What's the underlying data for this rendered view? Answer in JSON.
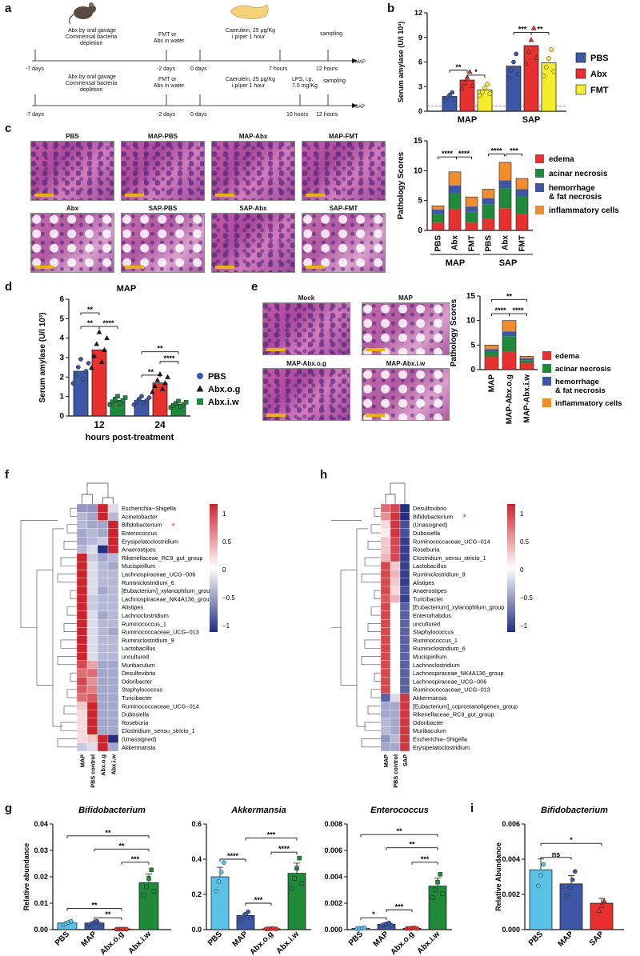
{
  "panel_labels": {
    "a": "a",
    "b": "b",
    "c": "c",
    "d": "d",
    "e": "e",
    "f": "f",
    "g": "g",
    "h": "h",
    "i": "i"
  },
  "panel_a": {
    "row1": {
      "abx_text_1": "Abx by oral gavage",
      "abx_text_2": "Commensal bacteria",
      "abx_text_3": "depletion",
      "fmt_text_1": "FMT or",
      "fmt_text_2": "Abx in water",
      "cae_text_1": "Caerulein, 25 μg/Kg",
      "cae_text_2": "i.p/per 1 hour",
      "sampling": "sampling",
      "t_m7": "-7 days",
      "t_m2": "-2 days",
      "t_0": "0 days",
      "t_7h": "7 hours",
      "t_12h": "12 hours",
      "end_label": "MAP"
    },
    "row2": {
      "abx_text_1": "Abx by oral gavage",
      "abx_text_2": "Commensal bacteria",
      "abx_text_3": "depletion",
      "fmt_text_1": "FMT or",
      "fmt_text_2": "Abx in water",
      "cae_text_1": "Caerulein, 25 μg/Kg",
      "cae_text_2": "i.p/per 1 hour",
      "lps_text_1": "LPS, i.p.",
      "lps_text_2": "7.5 mg/Kg",
      "sampling": "sampling",
      "t_m7": "-7 days",
      "t_m2": "-2 days",
      "t_0": "0 days",
      "t_10h": "10 hours",
      "t_12h": "12 hours",
      "end_label": "SAP"
    }
  },
  "colors": {
    "pbs": "#3d57a7",
    "abx": "#e8312f",
    "fmt": "#f6ee2c",
    "edema": "#e8312f",
    "acinar": "#1f8a3a",
    "hemorrhage": "#3d57a7",
    "inflam": "#f08c2a",
    "light_blue": "#5bc2e7",
    "green": "#1f8a3a"
  },
  "chart_b": {
    "type": "bar",
    "ylabel": "Serum amylase (U/l 10³)",
    "yticks": [
      "0",
      "3",
      "6",
      "9",
      "12"
    ],
    "categories": [
      "MAP",
      "SAP"
    ],
    "series": [
      {
        "name": "PBS",
        "values": [
          1.8,
          5.5
        ]
      },
      {
        "name": "Abx",
        "values": [
          3.8,
          8.0
        ]
      },
      {
        "name": "FMT",
        "values": [
          2.6,
          5.9
        ]
      }
    ],
    "ylim": [
      0,
      12
    ],
    "sig": [
      "**",
      "*",
      "***",
      "**"
    ]
  },
  "panel_c_images": [
    "PBS",
    "MAP-PBS",
    "MAP-Abx",
    "MAP-FMT",
    "Abx",
    "SAP-PBS",
    "SAP-Abx",
    "SAP-FMT"
  ],
  "chart_c": {
    "type": "bar",
    "ylabel": "Pathology Scores",
    "yticks": [
      "0",
      "5",
      "10",
      "15"
    ],
    "ylim": [
      0,
      15
    ],
    "categories": [
      "PBS",
      "Abx",
      "FMT",
      "PBS",
      "Abx",
      "FMT"
    ],
    "groups": [
      "MAP",
      "SAP"
    ],
    "series": [
      {
        "name": "edema",
        "values": [
          1.3,
          3.5,
          1.3,
          2.0,
          3.7,
          2.7
        ]
      },
      {
        "name": "acinar necrosis",
        "values": [
          1.4,
          2.8,
          1.8,
          2.4,
          3.3,
          3.0
        ]
      },
      {
        "name": "hemorrhage\n& fat necrosis",
        "values": [
          0.8,
          1.2,
          0.9,
          1.0,
          1.4,
          1.2
        ]
      },
      {
        "name": "inflammatory cells",
        "values": [
          0.6,
          2.3,
          1.6,
          1.5,
          3.0,
          1.8
        ]
      }
    ],
    "legend": [
      "edema",
      "acinar necrosis",
      "hemorrhage",
      "& fat necrosis",
      "inflammatory cells"
    ],
    "sig": [
      "****",
      "****",
      "****",
      "***"
    ]
  },
  "chart_d": {
    "type": "bar",
    "title": "MAP",
    "ylabel": "Serum amylase (U/l 10³)",
    "xlabel": "hours post-treatment",
    "yticks": [
      "0",
      "1",
      "2",
      "3",
      "4",
      "5",
      "6"
    ],
    "ylim": [
      0,
      6
    ],
    "categories": [
      "12",
      "24"
    ],
    "series": [
      {
        "name": "PBS",
        "values": [
          2.3,
          0.8
        ]
      },
      {
        "name": "Abx.o.g",
        "values": [
          3.4,
          1.7
        ]
      },
      {
        "name": "Abx.i.w",
        "values": [
          0.8,
          0.6
        ]
      }
    ],
    "sig": [
      "**",
      "**",
      "****",
      "**",
      "**",
      "****"
    ]
  },
  "panel_e_images": [
    "Mock",
    "MAP",
    "MAP-Abx.o.g",
    "MAP-Abx.i.w"
  ],
  "chart_e": {
    "type": "bar",
    "ylabel": "Pathology Scores",
    "yticks": [
      "0",
      "5",
      "10",
      "15"
    ],
    "ylim": [
      0,
      15
    ],
    "categories": [
      "MAP",
      "MAP-Abx.o.g",
      "MAP-Abx.i.w"
    ],
    "series": [
      {
        "name": "edema",
        "values": [
          2.6,
          3.6,
          1.3
        ]
      },
      {
        "name": "acinar necrosis",
        "values": [
          1.0,
          3.2,
          0.6
        ]
      },
      {
        "name": "hemorrhage & fat necrosis",
        "values": [
          0.6,
          1.0,
          0.4
        ]
      },
      {
        "name": "inflammatory cells",
        "values": [
          0.8,
          2.2,
          0.4
        ]
      }
    ],
    "legend": [
      "edema",
      "acinar necrosis",
      "hemorrhage",
      "& fat necrosis",
      "inflammatory cells"
    ],
    "sig": [
      "**",
      "****",
      "****"
    ]
  },
  "heatmap_f": {
    "columns": [
      "MAP",
      "PBS control",
      "Abx.o.g",
      "Abx.i.w"
    ],
    "scale": [
      "1",
      "0.5",
      "0",
      "−0.5",
      "−1"
    ],
    "rows": [
      "Escherichia−Shigella",
      "Acinetobacter",
      "Bifidobacterium",
      "Enterococcus",
      "Erysipelatoclostridium",
      "Anaerostipes",
      "Rikenellaceae_RC9_gut_group",
      "Mucispirillum",
      "Lachnospiraceae_UCG−006",
      "Ruminiclostridium_6",
      "[Eubacterium]_xylanophilum_group",
      "Lachnospiraceae_NK4A136_group",
      "Alistipes",
      "Lachnoclostridium",
      "Ruminococcus_1",
      "Ruminococcaceae_UCG−013",
      "Ruminiclostridium_9",
      "Lactobacillus",
      "uncultured",
      "Muribaculum",
      "Desulfovibrio",
      "Odoribacter",
      "Staphylococcus",
      "Turicibacter",
      "Ruminococcaceae_UCG−014",
      "Dubosiella",
      "Roseburia",
      "Clostridium_sensu_stricto_1",
      "(Unassigned)",
      "Akkermansia"
    ],
    "values": [
      [
        -0.6,
        -0.6,
        1.4,
        -0.2
      ],
      [
        -0.4,
        -0.5,
        1.4,
        -0.4
      ],
      [
        -0.4,
        -0.5,
        -0.5,
        1.4
      ],
      [
        -0.5,
        -0.4,
        -0.5,
        1.4
      ],
      [
        -0.5,
        -0.4,
        -0.3,
        1.4
      ],
      [
        -0.4,
        -0.2,
        -1.2,
        1.4
      ],
      [
        1.4,
        -0.3,
        -0.5,
        -0.4
      ],
      [
        1.4,
        -0.2,
        -0.4,
        -0.5
      ],
      [
        1.4,
        -0.2,
        -0.4,
        -0.4
      ],
      [
        1.4,
        -0.2,
        -0.4,
        -0.4
      ],
      [
        1.4,
        -0.2,
        -0.5,
        -0.4
      ],
      [
        1.4,
        -0.3,
        -0.4,
        -0.4
      ],
      [
        1.4,
        -0.3,
        -0.4,
        -0.4
      ],
      [
        1.4,
        -0.2,
        -0.5,
        -0.4
      ],
      [
        1.4,
        -0.2,
        -0.4,
        -0.4
      ],
      [
        1.4,
        -0.2,
        -0.4,
        -0.5
      ],
      [
        1.4,
        -0.2,
        -0.4,
        -0.4
      ],
      [
        1.4,
        -0.2,
        -0.4,
        -0.4
      ],
      [
        1.4,
        -0.2,
        -0.4,
        -0.4
      ],
      [
        1.0,
        0.5,
        -0.5,
        -0.5
      ],
      [
        0.8,
        0.8,
        -0.5,
        -0.5
      ],
      [
        1.0,
        0.6,
        -0.5,
        -0.5
      ],
      [
        0.9,
        0.7,
        -0.5,
        -0.5
      ],
      [
        0.8,
        0.9,
        -0.5,
        -0.5
      ],
      [
        0.3,
        1.3,
        -0.5,
        -0.5
      ],
      [
        0.2,
        1.3,
        -0.5,
        -0.5
      ],
      [
        0.2,
        1.3,
        -0.5,
        -0.5
      ],
      [
        0.2,
        1.3,
        -0.5,
        -0.5
      ],
      [
        0.2,
        0.3,
        1.2,
        -1.2
      ],
      [
        -0.3,
        -0.2,
        1.4,
        -0.5
      ]
    ],
    "marked_row": "Bifidobacterium"
  },
  "heatmap_h": {
    "columns": [
      "MAP",
      "PBS control",
      "SAP"
    ],
    "scale": [
      "1",
      "0.5",
      "0",
      "−0.5",
      "−1"
    ],
    "rows": [
      "Desulfovibrio",
      "Bifidobacterium",
      "(Unassigned)",
      "Dubosiella",
      "Ruminococcaceae_UCG−014",
      "Roseburia",
      "Clostridium_sensu_stricto_1",
      "Lactobacillus",
      "Ruminiclostridium_9",
      "Alistipes",
      "Anaerostipes",
      "Turicibacter",
      "[Eubacterium]_xylanophilum_group",
      "Enterorhabdus",
      "uncultured",
      "Staphylococcus",
      "Ruminococcus_1",
      "Ruminiclostridium_6",
      "Mucispirillum",
      "Lachnoclostridium",
      "Lachnospiraceae_NK4A136_group",
      "Lachnospiraceae_UCG−006",
      "Ruminococcaceae_UCG−013",
      "Akkermansia",
      "[Eubacterium]_coprostanoligenes_group",
      "Rikenellaceae_RC9_gut_group",
      "Odoribacter",
      "Muribaculum",
      "Escherichia−Shigella",
      "Erysipelatoclostridium"
    ],
    "values": [
      [
        0.8,
        1.0,
        -1.2
      ],
      [
        0.6,
        1.1,
        -1.2
      ],
      [
        0.2,
        1.1,
        -1.0
      ],
      [
        0.1,
        1.1,
        -1.0
      ],
      [
        0.3,
        1.0,
        -1.1
      ],
      [
        0.3,
        1.0,
        -1.1
      ],
      [
        0.4,
        1.0,
        -1.1
      ],
      [
        1.0,
        0.3,
        -1.1
      ],
      [
        1.0,
        0.4,
        -1.1
      ],
      [
        1.0,
        0.3,
        -1.1
      ],
      [
        1.0,
        0.2,
        -1.0
      ],
      [
        0.9,
        0.4,
        -1.1
      ],
      [
        1.0,
        0.0,
        -0.9
      ],
      [
        1.0,
        0.0,
        -0.9
      ],
      [
        1.0,
        0.0,
        -0.9
      ],
      [
        1.0,
        0.0,
        -0.9
      ],
      [
        1.0,
        0.0,
        -0.9
      ],
      [
        1.0,
        0.0,
        -0.9
      ],
      [
        1.0,
        0.0,
        -0.9
      ],
      [
        1.0,
        0.0,
        -0.9
      ],
      [
        1.0,
        0.0,
        -0.9
      ],
      [
        1.0,
        0.0,
        -0.9
      ],
      [
        1.0,
        0.0,
        -0.9
      ],
      [
        -0.9,
        -0.2,
        1.1
      ],
      [
        -0.5,
        -0.5,
        1.1
      ],
      [
        -0.5,
        -0.5,
        1.1
      ],
      [
        -0.4,
        -0.5,
        1.1
      ],
      [
        -0.4,
        -0.5,
        1.1
      ],
      [
        -0.6,
        -0.4,
        1.1
      ],
      [
        -0.5,
        -0.5,
        1.1
      ]
    ],
    "marked_row": "Bifidobacterium"
  },
  "chart_g": [
    {
      "type": "bar",
      "title": "Bifidobacterium",
      "ylabel": "Relative abundance",
      "yticks": [
        "0.00",
        "0.01",
        "0.02",
        "0.03",
        "0.04"
      ],
      "ylim": [
        0,
        0.04
      ],
      "categories": [
        "PBS",
        "MAP",
        "Abx.o.g",
        "Abx.i.w"
      ],
      "values": [
        0.0025,
        0.0025,
        0.0002,
        0.0178
      ],
      "sig": [
        "**",
        "**",
        "***",
        "**",
        "**"
      ]
    },
    {
      "type": "bar",
      "title": "Akkermansia",
      "ylabel": "",
      "yticks": [
        "0.0",
        "0.2",
        "0.4",
        "0.6"
      ],
      "ylim": [
        0,
        0.6
      ],
      "categories": [
        "PBS",
        "MAP",
        "Abx.o.g",
        "Abx.i.w"
      ],
      "values": [
        0.3,
        0.08,
        0.005,
        0.32
      ],
      "sig": [
        "****",
        "***",
        "***",
        "****"
      ]
    },
    {
      "type": "bar",
      "title": "Enterococcus",
      "ylabel": "",
      "yticks": [
        "0.000",
        "0.002",
        "0.004",
        "0.006",
        "0.008"
      ],
      "ylim": [
        0,
        0.008
      ],
      "categories": [
        "PBS",
        "MAP",
        "Abx.o.g",
        "Abx.i.w"
      ],
      "values": [
        0.0001,
        0.0004,
        0.0001,
        0.0033
      ],
      "sig": [
        "**",
        "**",
        "***",
        "*",
        "***"
      ]
    }
  ],
  "chart_i": {
    "type": "bar",
    "title": "Bifidobacterium",
    "ylabel": "Relative Abundance",
    "yticks": [
      "0.000",
      "0.002",
      "0.004",
      "0.006"
    ],
    "ylim": [
      0,
      0.006
    ],
    "categories": [
      "PBS",
      "MAP",
      "SAP"
    ],
    "values": [
      0.0034,
      0.0026,
      0.0015
    ],
    "sig": [
      "*",
      "ns"
    ]
  }
}
